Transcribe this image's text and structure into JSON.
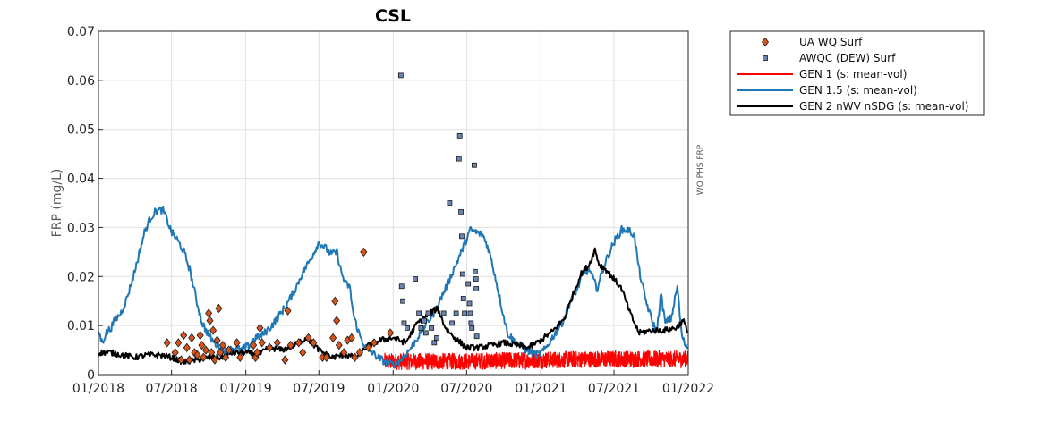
{
  "chart_data": {
    "type": "line",
    "title": "CSL",
    "ylabel": "FRP (mg/L)",
    "xlabel": "",
    "side_label": "WQ PHS FRP",
    "ylim": [
      0,
      0.07
    ],
    "yticks": [
      "0",
      "0.01",
      "0.02",
      "0.03",
      "0.04",
      "0.05",
      "0.06",
      "0.07"
    ],
    "xlim": [
      "2018-01-01",
      "2022-01-01"
    ],
    "xticks": [
      {
        "date": "2018-01-01",
        "label": "01/2018"
      },
      {
        "date": "2018-07-01",
        "label": "07/2018"
      },
      {
        "date": "2019-01-01",
        "label": "01/2019"
      },
      {
        "date": "2019-07-01",
        "label": "07/2019"
      },
      {
        "date": "2020-01-01",
        "label": "01/2020"
      },
      {
        "date": "2020-07-01",
        "label": "07/2020"
      },
      {
        "date": "2021-01-01",
        "label": "01/2021"
      },
      {
        "date": "2021-07-01",
        "label": "07/2021"
      },
      {
        "date": "2022-01-01",
        "label": "01/2022"
      }
    ],
    "grid": true,
    "legend_position": "outside-top-right",
    "series": [
      {
        "name": "UA WQ Surf",
        "kind": "scatter",
        "marker": "diamond",
        "color": "#d95319",
        "points": [
          [
            "2018-06-20",
            0.0065
          ],
          [
            "2018-07-10",
            0.0045
          ],
          [
            "2018-07-18",
            0.0065
          ],
          [
            "2018-07-25",
            0.003
          ],
          [
            "2018-07-31",
            0.008
          ],
          [
            "2018-08-08",
            0.0055
          ],
          [
            "2018-08-14",
            0.003
          ],
          [
            "2018-08-20",
            0.0075
          ],
          [
            "2018-08-27",
            0.0045
          ],
          [
            "2018-09-03",
            0.004
          ],
          [
            "2018-09-10",
            0.008
          ],
          [
            "2018-09-14",
            0.006
          ],
          [
            "2018-09-18",
            0.0035
          ],
          [
            "2018-09-24",
            0.005
          ],
          [
            "2018-10-01",
            0.0125
          ],
          [
            "2018-10-04",
            0.011
          ],
          [
            "2018-10-08",
            0.0045
          ],
          [
            "2018-10-12",
            0.009
          ],
          [
            "2018-10-16",
            0.003
          ],
          [
            "2018-10-22",
            0.007
          ],
          [
            "2018-10-26",
            0.0135
          ],
          [
            "2018-10-30",
            0.0045
          ],
          [
            "2018-11-05",
            0.006
          ],
          [
            "2018-11-12",
            0.0035
          ],
          [
            "2018-11-20",
            0.005
          ],
          [
            "2018-12-10",
            0.0065
          ],
          [
            "2018-12-18",
            0.0035
          ],
          [
            "2019-01-20",
            0.006
          ],
          [
            "2019-01-25",
            0.0035
          ],
          [
            "2019-01-29",
            0.0045
          ],
          [
            "2019-02-05",
            0.0095
          ],
          [
            "2019-02-10",
            0.0065
          ],
          [
            "2019-03-01",
            0.0055
          ],
          [
            "2019-03-20",
            0.0065
          ],
          [
            "2019-04-08",
            0.003
          ],
          [
            "2019-04-15",
            0.013
          ],
          [
            "2019-04-22",
            0.006
          ],
          [
            "2019-05-12",
            0.0065
          ],
          [
            "2019-05-22",
            0.0045
          ],
          [
            "2019-06-05",
            0.0075
          ],
          [
            "2019-06-18",
            0.0065
          ],
          [
            "2019-07-10",
            0.0035
          ],
          [
            "2019-07-20",
            0.0035
          ],
          [
            "2019-08-05",
            0.0075
          ],
          [
            "2019-08-10",
            0.015
          ],
          [
            "2019-08-14",
            0.011
          ],
          [
            "2019-08-20",
            0.006
          ],
          [
            "2019-09-01",
            0.0045
          ],
          [
            "2019-09-10",
            0.007
          ],
          [
            "2019-09-20",
            0.0075
          ],
          [
            "2019-09-28",
            0.0035
          ],
          [
            "2019-10-10",
            0.0045
          ],
          [
            "2019-10-20",
            0.025
          ],
          [
            "2019-11-01",
            0.0055
          ],
          [
            "2019-11-15",
            0.0065
          ],
          [
            "2019-12-25",
            0.0085
          ]
        ]
      },
      {
        "name": "AWQC (DEW) Surf",
        "kind": "scatter",
        "marker": "square",
        "color": "#6b84b3",
        "points": [
          [
            "2020-01-20",
            0.061
          ],
          [
            "2020-01-22",
            0.018
          ],
          [
            "2020-01-25",
            0.015
          ],
          [
            "2020-01-28",
            0.0105
          ],
          [
            "2020-02-05",
            0.0095
          ],
          [
            "2020-02-25",
            0.0195
          ],
          [
            "2020-03-05",
            0.0125
          ],
          [
            "2020-03-10",
            0.0095
          ],
          [
            "2020-03-18",
            0.011
          ],
          [
            "2020-03-22",
            0.0085
          ],
          [
            "2020-03-28",
            0.0125
          ],
          [
            "2020-04-05",
            0.0095
          ],
          [
            "2020-04-12",
            0.0065
          ],
          [
            "2020-04-18",
            0.0075
          ],
          [
            "2020-05-05",
            0.0125
          ],
          [
            "2020-05-20",
            0.035
          ],
          [
            "2020-05-26",
            0.0105
          ],
          [
            "2020-06-05",
            0.0125
          ],
          [
            "2020-06-12",
            0.044
          ],
          [
            "2020-06-14",
            0.0487
          ],
          [
            "2020-06-17",
            0.0332
          ],
          [
            "2020-06-19",
            0.0282
          ],
          [
            "2020-06-21",
            0.0205
          ],
          [
            "2020-06-23",
            0.0155
          ],
          [
            "2020-06-26",
            0.0125
          ],
          [
            "2020-07-05",
            0.0185
          ],
          [
            "2020-07-08",
            0.0145
          ],
          [
            "2020-07-10",
            0.0125
          ],
          [
            "2020-07-12",
            0.0105
          ],
          [
            "2020-07-14",
            0.0095
          ],
          [
            "2020-07-20",
            0.0427
          ],
          [
            "2020-07-22",
            0.021
          ],
          [
            "2020-07-24",
            0.0195
          ],
          [
            "2020-07-25",
            0.0175
          ],
          [
            "2020-07-26",
            0.0078
          ]
        ]
      },
      {
        "name": "GEN 1 (s: mean-vol)",
        "kind": "noisy-line",
        "color": "#ff0000",
        "range": [
          "2019-12-10",
          "2022-01-01"
        ],
        "base": [
          [
            "2019-12-10",
            0.0025
          ],
          [
            "2020-06-01",
            0.0025
          ],
          [
            "2021-06-01",
            0.003
          ],
          [
            "2022-01-01",
            0.003
          ]
        ],
        "noise": 0.0022
      },
      {
        "name": "GEN 1.5 (s: mean-vol)",
        "kind": "line",
        "color": "#1f77b4",
        "points": [
          [
            "2018-01-01",
            0.009
          ],
          [
            "2018-01-10",
            0.0065
          ],
          [
            "2018-01-20",
            0.0085
          ],
          [
            "2018-02-01",
            0.0095
          ],
          [
            "2018-02-10",
            0.011
          ],
          [
            "2018-02-25",
            0.0125
          ],
          [
            "2018-03-10",
            0.015
          ],
          [
            "2018-03-25",
            0.019
          ],
          [
            "2018-04-10",
            0.024
          ],
          [
            "2018-04-25",
            0.029
          ],
          [
            "2018-05-10",
            0.032
          ],
          [
            "2018-05-25",
            0.0335
          ],
          [
            "2018-06-10",
            0.0335
          ],
          [
            "2018-06-20",
            0.0315
          ],
          [
            "2018-07-01",
            0.029
          ],
          [
            "2018-07-15",
            0.0275
          ],
          [
            "2018-08-01",
            0.025
          ],
          [
            "2018-08-15",
            0.0215
          ],
          [
            "2018-09-01",
            0.015
          ],
          [
            "2018-09-15",
            0.0105
          ],
          [
            "2018-10-01",
            0.008
          ],
          [
            "2018-10-15",
            0.0065
          ],
          [
            "2018-11-01",
            0.0055
          ],
          [
            "2018-11-15",
            0.0045
          ],
          [
            "2018-12-01",
            0.0055
          ],
          [
            "2018-12-20",
            0.005
          ],
          [
            "2019-01-10",
            0.006
          ],
          [
            "2019-01-25",
            0.0075
          ],
          [
            "2019-02-10",
            0.008
          ],
          [
            "2019-03-01",
            0.0095
          ],
          [
            "2019-03-20",
            0.0115
          ],
          [
            "2019-04-10",
            0.014
          ],
          [
            "2019-05-01",
            0.017
          ],
          [
            "2019-05-20",
            0.0205
          ],
          [
            "2019-06-10",
            0.0235
          ],
          [
            "2019-07-01",
            0.027
          ],
          [
            "2019-07-15",
            0.026
          ],
          [
            "2019-08-01",
            0.0245
          ],
          [
            "2019-08-15",
            0.025
          ],
          [
            "2019-08-25",
            0.021
          ],
          [
            "2019-09-05",
            0.0185
          ],
          [
            "2019-09-15",
            0.018
          ],
          [
            "2019-09-25",
            0.012
          ],
          [
            "2019-10-10",
            0.008
          ],
          [
            "2019-10-25",
            0.0055
          ],
          [
            "2019-11-10",
            0.0045
          ],
          [
            "2019-11-25",
            0.0035
          ],
          [
            "2019-12-15",
            0.0025
          ],
          [
            "2020-01-01",
            0.002
          ],
          [
            "2020-01-20",
            0.003
          ],
          [
            "2020-02-10",
            0.005
          ],
          [
            "2020-03-01",
            0.0075
          ],
          [
            "2020-03-20",
            0.01
          ],
          [
            "2020-04-10",
            0.0125
          ],
          [
            "2020-05-01",
            0.016
          ],
          [
            "2020-05-20",
            0.0195
          ],
          [
            "2020-06-10",
            0.0235
          ],
          [
            "2020-06-25",
            0.0265
          ],
          [
            "2020-07-10",
            0.0295
          ],
          [
            "2020-07-25",
            0.029
          ],
          [
            "2020-08-10",
            0.0285
          ],
          [
            "2020-08-25",
            0.0255
          ],
          [
            "2020-09-10",
            0.02
          ],
          [
            "2020-09-25",
            0.014
          ],
          [
            "2020-10-10",
            0.0085
          ],
          [
            "2020-10-25",
            0.007
          ],
          [
            "2020-11-10",
            0.006
          ],
          [
            "2020-11-25",
            0.005
          ],
          [
            "2020-12-10",
            0.0045
          ],
          [
            "2020-12-25",
            0.004
          ],
          [
            "2021-01-10",
            0.005
          ],
          [
            "2021-01-25",
            0.007
          ],
          [
            "2021-02-10",
            0.009
          ],
          [
            "2021-02-25",
            0.011
          ],
          [
            "2021-03-15",
            0.015
          ],
          [
            "2021-04-01",
            0.0175
          ],
          [
            "2021-04-15",
            0.0205
          ],
          [
            "2021-05-01",
            0.0215
          ],
          [
            "2021-05-20",
            0.0175
          ],
          [
            "2021-06-10",
            0.023
          ],
          [
            "2021-07-01",
            0.027
          ],
          [
            "2021-07-20",
            0.0295
          ],
          [
            "2021-08-05",
            0.0295
          ],
          [
            "2021-08-20",
            0.0285
          ],
          [
            "2021-09-01",
            0.0215
          ],
          [
            "2021-09-15",
            0.016
          ],
          [
            "2021-10-01",
            0.0115
          ],
          [
            "2021-10-15",
            0.0085
          ],
          [
            "2021-10-25",
            0.0165
          ],
          [
            "2021-11-05",
            0.0105
          ],
          [
            "2021-11-20",
            0.0115
          ],
          [
            "2021-12-05",
            0.018
          ],
          [
            "2021-12-15",
            0.0085
          ],
          [
            "2021-12-22",
            0.0065
          ],
          [
            "2022-01-01",
            0.0055
          ]
        ],
        "noise": 0.0008
      },
      {
        "name": "GEN 2 nWV nSDG (s: mean-vol)",
        "kind": "line",
        "color": "#000000",
        "points": [
          [
            "2018-01-01",
            0.0045
          ],
          [
            "2018-02-01",
            0.0045
          ],
          [
            "2018-03-01",
            0.004
          ],
          [
            "2018-04-01",
            0.0035
          ],
          [
            "2018-05-01",
            0.004
          ],
          [
            "2018-06-01",
            0.004
          ],
          [
            "2018-07-01",
            0.0035
          ],
          [
            "2018-08-01",
            0.0025
          ],
          [
            "2018-09-01",
            0.003
          ],
          [
            "2018-10-01",
            0.0035
          ],
          [
            "2018-11-01",
            0.0035
          ],
          [
            "2018-12-01",
            0.0045
          ],
          [
            "2019-01-01",
            0.0045
          ],
          [
            "2019-02-01",
            0.004
          ],
          [
            "2019-03-01",
            0.0055
          ],
          [
            "2019-04-01",
            0.005
          ],
          [
            "2019-05-01",
            0.006
          ],
          [
            "2019-06-01",
            0.0075
          ],
          [
            "2019-07-01",
            0.005
          ],
          [
            "2019-08-01",
            0.0035
          ],
          [
            "2019-09-01",
            0.004
          ],
          [
            "2019-10-01",
            0.0035
          ],
          [
            "2019-11-01",
            0.006
          ],
          [
            "2019-12-01",
            0.007
          ],
          [
            "2020-01-01",
            0.0075
          ],
          [
            "2020-02-01",
            0.0065
          ],
          [
            "2020-03-01",
            0.0105
          ],
          [
            "2020-04-01",
            0.0125
          ],
          [
            "2020-04-20",
            0.0135
          ],
          [
            "2020-05-10",
            0.0095
          ],
          [
            "2020-06-01",
            0.0075
          ],
          [
            "2020-07-01",
            0.0055
          ],
          [
            "2020-08-01",
            0.0055
          ],
          [
            "2020-09-01",
            0.006
          ],
          [
            "2020-10-01",
            0.0065
          ],
          [
            "2020-11-01",
            0.006
          ],
          [
            "2020-12-01",
            0.0055
          ],
          [
            "2021-01-01",
            0.007
          ],
          [
            "2021-02-01",
            0.009
          ],
          [
            "2021-03-01",
            0.0115
          ],
          [
            "2021-03-20",
            0.016
          ],
          [
            "2021-04-10",
            0.0205
          ],
          [
            "2021-05-01",
            0.0225
          ],
          [
            "2021-05-15",
            0.0255
          ],
          [
            "2021-05-25",
            0.0225
          ],
          [
            "2021-06-10",
            0.0215
          ],
          [
            "2021-07-01",
            0.0195
          ],
          [
            "2021-07-20",
            0.0175
          ],
          [
            "2021-08-10",
            0.0125
          ],
          [
            "2021-09-01",
            0.0085
          ],
          [
            "2021-10-01",
            0.009
          ],
          [
            "2021-11-01",
            0.009
          ],
          [
            "2021-12-01",
            0.0095
          ],
          [
            "2021-12-20",
            0.011
          ],
          [
            "2022-01-01",
            0.0085
          ]
        ],
        "noise": 0.0006
      }
    ]
  }
}
